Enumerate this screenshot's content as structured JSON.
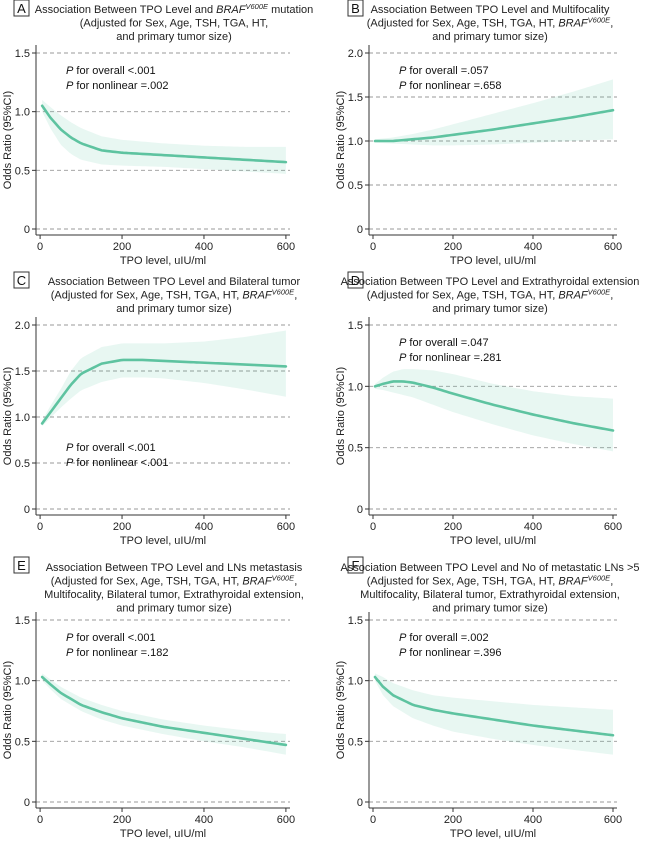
{
  "chart_data": [
    {
      "type": "line",
      "panel": "A",
      "title_lines": [
        [
          {
            "t": "Association Between TPO Level and "
          },
          {
            "t": "BRAF",
            "i": true
          },
          {
            "t": "V600E",
            "i": true,
            "sup": true
          },
          {
            "t": " mutation"
          }
        ],
        [
          {
            "t": "(Adjusted for Sex, Age, TSH, TGA, HT,"
          }
        ],
        [
          {
            "t": "and primary tumor size)"
          }
        ]
      ],
      "annotations": [
        [
          {
            "t": "P",
            "i": true
          },
          {
            "t": " for overall <.001"
          }
        ],
        [
          {
            "t": "P",
            "i": true
          },
          {
            "t": " for nonlinear =.002"
          }
        ]
      ],
      "annotation_position": "top-left",
      "xlabel": "TPO level, uIU/ml",
      "ylabel": "Odds Ratio (95%CI)",
      "xlim": [
        -10,
        610
      ],
      "xticks": [
        0,
        200,
        400,
        600
      ],
      "ylim": [
        0,
        1.5
      ],
      "yticks": [
        "0",
        "0.5",
        "1.0",
        "1.5"
      ],
      "x": [
        5,
        25,
        50,
        75,
        100,
        150,
        200,
        300,
        400,
        500,
        600
      ],
      "series": [
        {
          "name": "estimate",
          "values": [
            1.05,
            0.95,
            0.85,
            0.78,
            0.73,
            0.67,
            0.65,
            0.63,
            0.61,
            0.59,
            0.57
          ]
        },
        {
          "name": "lower",
          "values": [
            1.0,
            0.86,
            0.72,
            0.64,
            0.59,
            0.55,
            0.54,
            0.53,
            0.51,
            0.49,
            0.47
          ]
        },
        {
          "name": "upper",
          "values": [
            1.1,
            1.04,
            0.97,
            0.91,
            0.86,
            0.79,
            0.76,
            0.73,
            0.71,
            0.7,
            0.7
          ]
        }
      ]
    },
    {
      "type": "line",
      "panel": "B",
      "title_lines": [
        [
          {
            "t": "Association Between TPO Level and Multifocality"
          }
        ],
        [
          {
            "t": "(Adjusted for Sex, Age, TSH, TGA, HT, "
          },
          {
            "t": "BRAF",
            "i": true
          },
          {
            "t": "V600E",
            "i": true,
            "sup": true
          },
          {
            "t": ","
          }
        ],
        [
          {
            "t": "and primary tumor size)"
          }
        ]
      ],
      "annotations": [
        [
          {
            "t": "P",
            "i": true
          },
          {
            "t": " for overall =.057"
          }
        ],
        [
          {
            "t": "P",
            "i": true
          },
          {
            "t": " for nonlinear =.658"
          }
        ]
      ],
      "annotation_position": "top-left",
      "xlabel": "TPO level, uIU/ml",
      "ylabel": "Odds Ratio (95%CI)",
      "xlim": [
        -10,
        610
      ],
      "xticks": [
        0,
        200,
        400,
        600
      ],
      "ylim": [
        0,
        2.0
      ],
      "yticks": [
        "0",
        "0.5",
        "1.0",
        "1.5",
        "2.0"
      ],
      "x": [
        5,
        50,
        100,
        150,
        200,
        300,
        400,
        500,
        600
      ],
      "series": [
        {
          "name": "estimate",
          "values": [
            1.0,
            1.0,
            1.02,
            1.04,
            1.07,
            1.13,
            1.2,
            1.27,
            1.35
          ]
        },
        {
          "name": "lower",
          "values": [
            0.98,
            0.97,
            0.96,
            0.95,
            0.95,
            0.96,
            0.98,
            1.0,
            1.02
          ]
        },
        {
          "name": "upper",
          "values": [
            1.02,
            1.04,
            1.08,
            1.13,
            1.19,
            1.31,
            1.43,
            1.56,
            1.7
          ]
        }
      ]
    },
    {
      "type": "line",
      "panel": "C",
      "title_lines": [
        [
          {
            "t": "Association Between TPO Level and Bilateral tumor"
          }
        ],
        [
          {
            "t": "(Adjusted for Sex, Age, TSH, TGA, HT, "
          },
          {
            "t": "BRAF",
            "i": true
          },
          {
            "t": "V600E",
            "i": true,
            "sup": true
          },
          {
            "t": ","
          }
        ],
        [
          {
            "t": "and primary tumor size)"
          }
        ]
      ],
      "annotations": [
        [
          {
            "t": "P",
            "i": true
          },
          {
            "t": " for overall <.001"
          }
        ],
        [
          {
            "t": "P",
            "i": true
          },
          {
            "t": " for nonlinear <.001"
          }
        ]
      ],
      "annotation_position": "bottom-left",
      "xlabel": "TPO level, uIU/ml",
      "ylabel": "Odds Ratio (95%CI)",
      "xlim": [
        -10,
        610
      ],
      "xticks": [
        0,
        200,
        400,
        600
      ],
      "ylim": [
        0,
        2.0
      ],
      "yticks": [
        "0",
        "0.5",
        "1.0",
        "1.5",
        "2.0"
      ],
      "x": [
        5,
        25,
        50,
        75,
        100,
        150,
        200,
        250,
        300,
        400,
        500,
        600
      ],
      "series": [
        {
          "name": "estimate",
          "values": [
            0.93,
            1.05,
            1.2,
            1.35,
            1.47,
            1.58,
            1.62,
            1.62,
            1.61,
            1.59,
            1.57,
            1.55
          ]
        },
        {
          "name": "lower",
          "values": [
            0.9,
            0.99,
            1.1,
            1.2,
            1.29,
            1.38,
            1.43,
            1.43,
            1.42,
            1.37,
            1.3,
            1.22
          ]
        },
        {
          "name": "upper",
          "values": [
            0.96,
            1.12,
            1.3,
            1.5,
            1.64,
            1.76,
            1.8,
            1.8,
            1.8,
            1.82,
            1.87,
            1.94
          ]
        }
      ]
    },
    {
      "type": "line",
      "panel": "D",
      "title_lines": [
        [
          {
            "t": "Association Between TPO Level and Extrathyroidal extension"
          }
        ],
        [
          {
            "t": "(Adjusted for Sex, Age, TSH, TGA, HT, "
          },
          {
            "t": "BRAF",
            "i": true
          },
          {
            "t": "V600E",
            "i": true,
            "sup": true
          },
          {
            "t": ","
          }
        ],
        [
          {
            "t": "and primary tumor size)"
          }
        ]
      ],
      "annotations": [
        [
          {
            "t": "P",
            "i": true
          },
          {
            "t": " for overall =.047"
          }
        ],
        [
          {
            "t": "P",
            "i": true
          },
          {
            "t": " for nonlinear =.281"
          }
        ]
      ],
      "annotation_position": "top-left",
      "xlabel": "TPO level, uIU/ml",
      "ylabel": "Odds Ratio (95%CI)",
      "xlim": [
        -10,
        610
      ],
      "xticks": [
        0,
        200,
        400,
        600
      ],
      "ylim": [
        0,
        1.5
      ],
      "yticks": [
        "0",
        "0.5",
        "1.0",
        "1.5"
      ],
      "x": [
        5,
        25,
        50,
        75,
        100,
        150,
        200,
        300,
        400,
        500,
        600
      ],
      "series": [
        {
          "name": "estimate",
          "values": [
            1.0,
            1.02,
            1.04,
            1.04,
            1.03,
            0.99,
            0.94,
            0.85,
            0.77,
            0.7,
            0.64
          ]
        },
        {
          "name": "lower",
          "values": [
            0.98,
            0.97,
            0.95,
            0.93,
            0.91,
            0.85,
            0.79,
            0.69,
            0.6,
            0.53,
            0.47
          ]
        },
        {
          "name": "upper",
          "values": [
            1.02,
            1.07,
            1.12,
            1.14,
            1.14,
            1.13,
            1.1,
            1.02,
            0.96,
            0.92,
            0.9
          ]
        }
      ]
    },
    {
      "type": "line",
      "panel": "E",
      "title_lines": [
        [
          {
            "t": "Association Between TPO Level and LNs metastasis"
          }
        ],
        [
          {
            "t": "(Adjusted for Sex, Age, TSH, TGA, HT, "
          },
          {
            "t": "BRAF",
            "i": true
          },
          {
            "t": "V600E",
            "i": true,
            "sup": true
          },
          {
            "t": ","
          }
        ],
        [
          {
            "t": "Multifocality, Bilateral tumor, Extrathyroidal extension,"
          }
        ],
        [
          {
            "t": "and primary tumor size)"
          }
        ]
      ],
      "annotations": [
        [
          {
            "t": "P",
            "i": true
          },
          {
            "t": " for overall <.001"
          }
        ],
        [
          {
            "t": "P",
            "i": true
          },
          {
            "t": " for nonlinear =.182"
          }
        ]
      ],
      "annotation_position": "top-left",
      "xlabel": "TPO level, uIU/ml",
      "ylabel": "Odds Ratio (95%CI)",
      "xlim": [
        -10,
        610
      ],
      "xticks": [
        0,
        200,
        400,
        600
      ],
      "ylim": [
        0,
        1.5
      ],
      "yticks": [
        "0",
        "0.5",
        "1.0",
        "1.5"
      ],
      "x": [
        5,
        25,
        50,
        100,
        150,
        200,
        300,
        400,
        500,
        600
      ],
      "series": [
        {
          "name": "estimate",
          "values": [
            1.03,
            0.97,
            0.9,
            0.8,
            0.74,
            0.69,
            0.62,
            0.57,
            0.52,
            0.47
          ]
        },
        {
          "name": "lower",
          "values": [
            1.0,
            0.93,
            0.85,
            0.75,
            0.68,
            0.63,
            0.56,
            0.5,
            0.45,
            0.39
          ]
        },
        {
          "name": "upper",
          "values": [
            1.06,
            1.01,
            0.95,
            0.86,
            0.8,
            0.75,
            0.68,
            0.63,
            0.59,
            0.56
          ]
        }
      ]
    },
    {
      "type": "line",
      "panel": "F",
      "title_lines": [
        [
          {
            "t": "Association Between TPO Level and No of metastatic LNs >5"
          }
        ],
        [
          {
            "t": "(Adjusted for Sex, Age, TSH, TGA, HT, "
          },
          {
            "t": "BRAF",
            "i": true
          },
          {
            "t": "V600E",
            "i": true,
            "sup": true
          },
          {
            "t": ","
          }
        ],
        [
          {
            "t": "Multifocality, Bilateral tumor, Extrathyroidal extension,"
          }
        ],
        [
          {
            "t": "and primary tumor size)"
          }
        ]
      ],
      "annotations": [
        [
          {
            "t": "P",
            "i": true
          },
          {
            "t": " for overall =.002"
          }
        ],
        [
          {
            "t": "P",
            "i": true
          },
          {
            "t": " for nonlinear =.396"
          }
        ]
      ],
      "annotation_position": "top-left",
      "xlabel": "TPO level, uIU/ml",
      "ylabel": "Odds Ratio (95%CI)",
      "xlim": [
        -10,
        610
      ],
      "xticks": [
        0,
        200,
        400,
        600
      ],
      "ylim": [
        0,
        1.5
      ],
      "yticks": [
        "0",
        "0.5",
        "1.0",
        "1.5"
      ],
      "x": [
        5,
        25,
        50,
        100,
        150,
        200,
        300,
        400,
        500,
        600
      ],
      "series": [
        {
          "name": "estimate",
          "values": [
            1.03,
            0.95,
            0.88,
            0.8,
            0.76,
            0.73,
            0.68,
            0.63,
            0.59,
            0.55
          ]
        },
        {
          "name": "lower",
          "values": [
            1.0,
            0.88,
            0.79,
            0.69,
            0.63,
            0.58,
            0.52,
            0.47,
            0.43,
            0.39
          ]
        },
        {
          "name": "upper",
          "values": [
            1.06,
            1.03,
            0.98,
            0.92,
            0.88,
            0.86,
            0.83,
            0.8,
            0.78,
            0.76
          ]
        }
      ]
    }
  ],
  "colors": {
    "line": "#5ec3a0",
    "band": "#4cc29a",
    "grid": "#9a9a9a",
    "axis": "#333333"
  }
}
